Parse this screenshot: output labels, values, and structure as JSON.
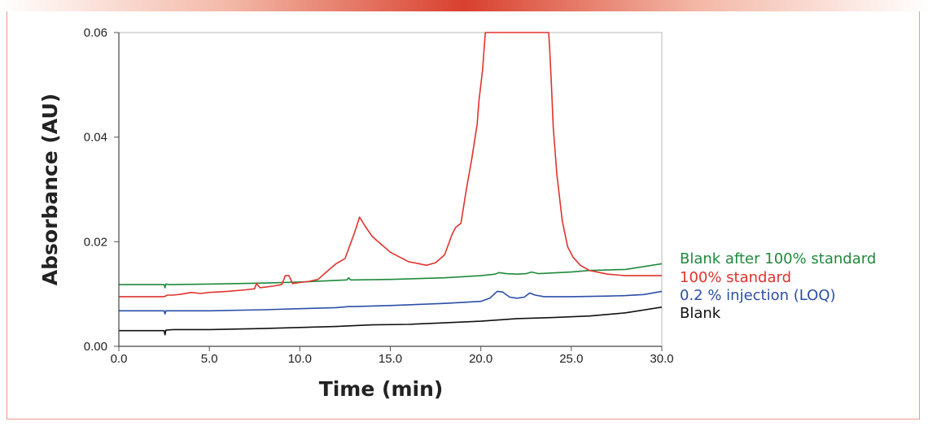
{
  "chart_data": {
    "type": "line",
    "xlabel": "Time (min)",
    "ylabel": "Absorbance (AU)",
    "xlim": [
      0,
      30
    ],
    "ylim": [
      0,
      0.06
    ],
    "x_ticks": [
      "0.0",
      "5.0",
      "10.0",
      "15.0",
      "20.0",
      "25.0",
      "30.0"
    ],
    "y_ticks": [
      "0.00",
      "0.02",
      "0.04",
      "0.06"
    ],
    "grid": false,
    "legend_position": "right",
    "series": [
      {
        "name": "Blank after 100% standard",
        "color": "#1e8a3c",
        "points": [
          [
            0,
            0.0118
          ],
          [
            2.4,
            0.0118
          ],
          [
            2.5,
            0.0118
          ],
          [
            2.55,
            0.0112
          ],
          [
            2.6,
            0.0119
          ],
          [
            2.8,
            0.0118
          ],
          [
            5,
            0.0119
          ],
          [
            8,
            0.0121
          ],
          [
            10,
            0.0123
          ],
          [
            12,
            0.0126
          ],
          [
            12.6,
            0.0127
          ],
          [
            12.7,
            0.0131
          ],
          [
            12.8,
            0.0127
          ],
          [
            13,
            0.0127
          ],
          [
            15,
            0.0128
          ],
          [
            18,
            0.0131
          ],
          [
            20,
            0.0135
          ],
          [
            20.8,
            0.0138
          ],
          [
            21,
            0.0141
          ],
          [
            21.4,
            0.0139
          ],
          [
            22,
            0.0138
          ],
          [
            22.5,
            0.0139
          ],
          [
            22.8,
            0.0142
          ],
          [
            23.2,
            0.0139
          ],
          [
            25,
            0.0142
          ],
          [
            26,
            0.0145
          ],
          [
            28,
            0.0147
          ],
          [
            30,
            0.0158
          ]
        ]
      },
      {
        "name": "100% standard",
        "color": "#e0332e",
        "points": [
          [
            0,
            0.0095
          ],
          [
            2.5,
            0.0095
          ],
          [
            2.7,
            0.0098
          ],
          [
            3,
            0.0098
          ],
          [
            3.5,
            0.01
          ],
          [
            4,
            0.0103
          ],
          [
            4.5,
            0.0101
          ],
          [
            5,
            0.0103
          ],
          [
            6,
            0.0105
          ],
          [
            7,
            0.0108
          ],
          [
            7.5,
            0.011
          ],
          [
            7.6,
            0.012
          ],
          [
            7.8,
            0.0112
          ],
          [
            8.5,
            0.0115
          ],
          [
            9,
            0.0118
          ],
          [
            9.2,
            0.0135
          ],
          [
            9.4,
            0.0135
          ],
          [
            9.6,
            0.012
          ],
          [
            10,
            0.0122
          ],
          [
            10.5,
            0.0124
          ],
          [
            11,
            0.0128
          ],
          [
            11.4,
            0.014
          ],
          [
            12,
            0.0158
          ],
          [
            12.5,
            0.0168
          ],
          [
            13,
            0.0215
          ],
          [
            13.3,
            0.0247
          ],
          [
            13.6,
            0.023
          ],
          [
            14,
            0.021
          ],
          [
            14.5,
            0.0195
          ],
          [
            15,
            0.018
          ],
          [
            16,
            0.0162
          ],
          [
            17,
            0.0155
          ],
          [
            17.5,
            0.016
          ],
          [
            18,
            0.0175
          ],
          [
            18.4,
            0.0213
          ],
          [
            18.6,
            0.0227
          ],
          [
            18.9,
            0.0235
          ],
          [
            19.2,
            0.03
          ],
          [
            19.5,
            0.0358
          ],
          [
            19.8,
            0.0425
          ],
          [
            19.9,
            0.047
          ],
          [
            20,
            0.05
          ],
          [
            20.1,
            0.053
          ],
          [
            20.25,
            0.06
          ],
          [
            23.75,
            0.06
          ],
          [
            23.8,
            0.057
          ],
          [
            23.9,
            0.05
          ],
          [
            24,
            0.042
          ],
          [
            24.2,
            0.033
          ],
          [
            24.5,
            0.024
          ],
          [
            24.8,
            0.019
          ],
          [
            25.1,
            0.017
          ],
          [
            25.5,
            0.0155
          ],
          [
            26,
            0.0145
          ],
          [
            27,
            0.0138
          ],
          [
            28,
            0.0135
          ],
          [
            30,
            0.0135
          ]
        ]
      },
      {
        "name": "0.2 % injection (LOQ)",
        "color": "#2b4ea6",
        "points": [
          [
            0,
            0.0068
          ],
          [
            2.4,
            0.0068
          ],
          [
            2.5,
            0.0068
          ],
          [
            2.55,
            0.0062
          ],
          [
            2.6,
            0.0068
          ],
          [
            3,
            0.0068
          ],
          [
            5,
            0.0068
          ],
          [
            8,
            0.007
          ],
          [
            10,
            0.0072
          ],
          [
            12,
            0.0074
          ],
          [
            12.7,
            0.0076
          ],
          [
            13,
            0.0076
          ],
          [
            15,
            0.0078
          ],
          [
            18,
            0.0082
          ],
          [
            20,
            0.0086
          ],
          [
            20.5,
            0.0092
          ],
          [
            20.9,
            0.0105
          ],
          [
            21.2,
            0.0104
          ],
          [
            21.6,
            0.0094
          ],
          [
            22,
            0.0092
          ],
          [
            22.4,
            0.0094
          ],
          [
            22.7,
            0.0102
          ],
          [
            23,
            0.0098
          ],
          [
            23.5,
            0.0095
          ],
          [
            25,
            0.0095
          ],
          [
            27,
            0.0096
          ],
          [
            28,
            0.0097
          ],
          [
            29,
            0.0099
          ],
          [
            30,
            0.0105
          ]
        ]
      },
      {
        "name": "Blank",
        "color": "#111111",
        "points": [
          [
            0,
            0.003
          ],
          [
            2.4,
            0.003
          ],
          [
            2.5,
            0.003
          ],
          [
            2.55,
            0.0022
          ],
          [
            2.6,
            0.0031
          ],
          [
            3,
            0.0032
          ],
          [
            5,
            0.0032
          ],
          [
            8,
            0.0034
          ],
          [
            10,
            0.0036
          ],
          [
            12,
            0.0038
          ],
          [
            14,
            0.0041
          ],
          [
            16,
            0.0042
          ],
          [
            18,
            0.0045
          ],
          [
            20,
            0.0048
          ],
          [
            22,
            0.0053
          ],
          [
            24,
            0.0055
          ],
          [
            26,
            0.0058
          ],
          [
            28,
            0.0064
          ],
          [
            30,
            0.0075
          ]
        ]
      }
    ]
  }
}
